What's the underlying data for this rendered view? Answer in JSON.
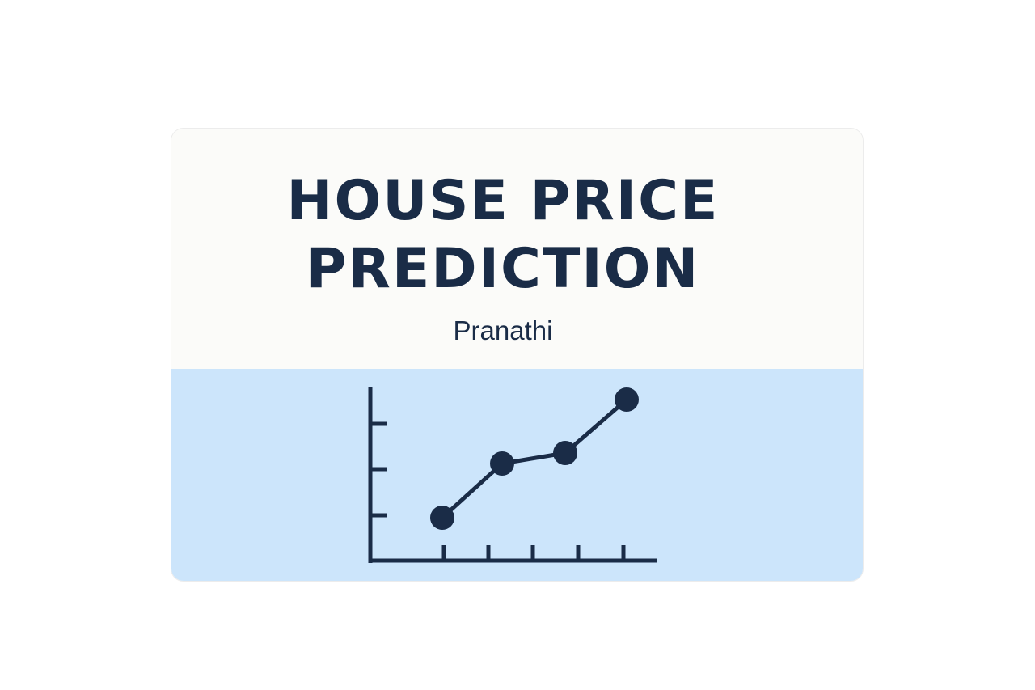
{
  "title": {
    "line1": "HOUSE PRICE",
    "line2": "PREDICTION"
  },
  "subtitle": "Pranathi",
  "colors": {
    "ink": "#1a2c47",
    "card_top": "#fbfbf9",
    "card_bottom": "#cce5fb"
  },
  "icon": "line-chart-icon"
}
